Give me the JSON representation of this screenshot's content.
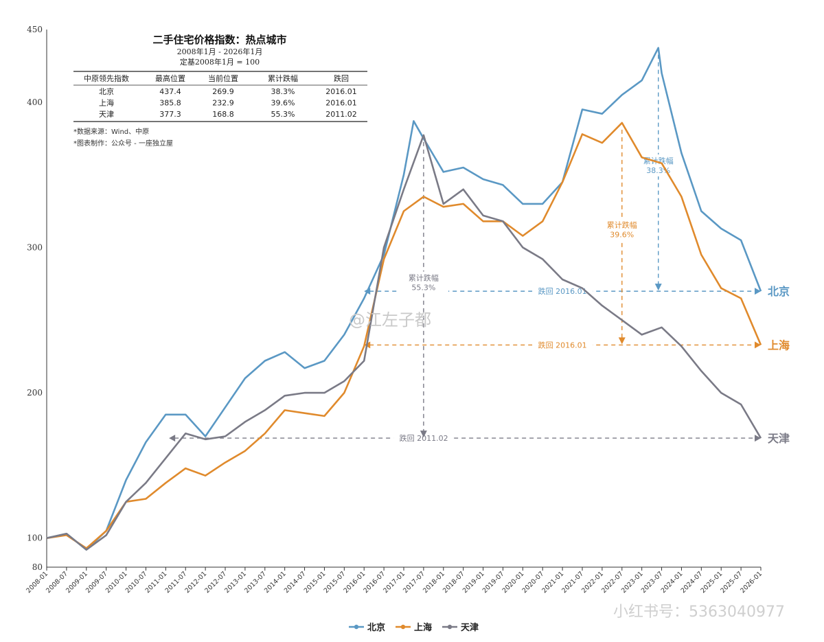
{
  "chart_data": {
    "type": "line",
    "title": "二手住宅价格指数：热点城市",
    "subtitle_range": "2008年1月 - 2026年1月",
    "subtitle_base": "定基2008年1月 = 100",
    "ylim": [
      80,
      450
    ],
    "yticks": [
      80,
      100,
      200,
      300,
      400,
      450
    ],
    "grid": false,
    "legend_position": "bottom",
    "x_ticks": [
      "2008-01",
      "2008-07",
      "2009-01",
      "2009-07",
      "2010-01",
      "2010-07",
      "2011-01",
      "2011-07",
      "2012-01",
      "2012-07",
      "2013-01",
      "2013-07",
      "2014-01",
      "2014-07",
      "2015-01",
      "2015-07",
      "2016-01",
      "2016-07",
      "2017-01",
      "2017-07",
      "2018-01",
      "2018-07",
      "2019-01",
      "2019-07",
      "2020-01",
      "2020-07",
      "2021-01",
      "2021-07",
      "2022-01",
      "2022-07",
      "2023-01",
      "2023-07",
      "2024-01",
      "2024-07",
      "2025-01",
      "2025-07",
      "2026-01"
    ],
    "series": [
      {
        "name": "北京",
        "end_label": "北京",
        "color": "#5a98c4",
        "points": [
          [
            "2008-01",
            100
          ],
          [
            "2008-07",
            103
          ],
          [
            "2009-01",
            92
          ],
          [
            "2009-07",
            105
          ],
          [
            "2010-01",
            140
          ],
          [
            "2010-07",
            166
          ],
          [
            "2011-01",
            185
          ],
          [
            "2011-07",
            185
          ],
          [
            "2012-01",
            170
          ],
          [
            "2012-07",
            190
          ],
          [
            "2013-01",
            210
          ],
          [
            "2013-07",
            222
          ],
          [
            "2014-01",
            228
          ],
          [
            "2014-07",
            217
          ],
          [
            "2015-01",
            222
          ],
          [
            "2015-07",
            240
          ],
          [
            "2016-01",
            265
          ],
          [
            "2016-07",
            295
          ],
          [
            "2017-01",
            350
          ],
          [
            "2017-04",
            387
          ],
          [
            "2017-07",
            375
          ],
          [
            "2018-01",
            352
          ],
          [
            "2018-07",
            355
          ],
          [
            "2019-01",
            347
          ],
          [
            "2019-07",
            343
          ],
          [
            "2020-01",
            330
          ],
          [
            "2020-07",
            330
          ],
          [
            "2021-01",
            345
          ],
          [
            "2021-07",
            395
          ],
          [
            "2022-01",
            392
          ],
          [
            "2022-07",
            405
          ],
          [
            "2023-01",
            415
          ],
          [
            "2023-06",
            437.4
          ],
          [
            "2023-07",
            420
          ],
          [
            "2024-01",
            365
          ],
          [
            "2024-07",
            325
          ],
          [
            "2025-01",
            313
          ],
          [
            "2025-07",
            305
          ],
          [
            "2026-01",
            269.9
          ]
        ]
      },
      {
        "name": "上海",
        "end_label": "上海",
        "color": "#e08a2c",
        "points": [
          [
            "2008-01",
            100
          ],
          [
            "2008-07",
            102
          ],
          [
            "2009-01",
            93
          ],
          [
            "2009-07",
            105
          ],
          [
            "2010-01",
            125
          ],
          [
            "2010-07",
            127
          ],
          [
            "2011-01",
            138
          ],
          [
            "2011-07",
            148
          ],
          [
            "2012-01",
            143
          ],
          [
            "2012-07",
            152
          ],
          [
            "2013-01",
            160
          ],
          [
            "2013-07",
            172
          ],
          [
            "2014-01",
            188
          ],
          [
            "2014-07",
            186
          ],
          [
            "2015-01",
            184
          ],
          [
            "2015-07",
            200
          ],
          [
            "2016-01",
            232
          ],
          [
            "2016-07",
            292
          ],
          [
            "2017-01",
            325
          ],
          [
            "2017-07",
            335
          ],
          [
            "2018-01",
            328
          ],
          [
            "2018-07",
            330
          ],
          [
            "2019-01",
            318
          ],
          [
            "2019-07",
            318
          ],
          [
            "2020-01",
            308
          ],
          [
            "2020-07",
            318
          ],
          [
            "2021-01",
            345
          ],
          [
            "2021-07",
            378
          ],
          [
            "2022-01",
            372
          ],
          [
            "2022-07",
            385.8
          ],
          [
            "2023-01",
            362
          ],
          [
            "2023-07",
            358
          ],
          [
            "2024-01",
            335
          ],
          [
            "2024-07",
            295
          ],
          [
            "2025-01",
            272
          ],
          [
            "2025-07",
            265
          ],
          [
            "2026-01",
            232.9
          ]
        ]
      },
      {
        "name": "天津",
        "end_label": "天津",
        "color": "#7a7a86",
        "points": [
          [
            "2008-01",
            100
          ],
          [
            "2008-07",
            103
          ],
          [
            "2009-01",
            92
          ],
          [
            "2009-07",
            102
          ],
          [
            "2010-01",
            125
          ],
          [
            "2010-07",
            138
          ],
          [
            "2011-01",
            155
          ],
          [
            "2011-07",
            172
          ],
          [
            "2012-01",
            168
          ],
          [
            "2012-07",
            170
          ],
          [
            "2013-01",
            180
          ],
          [
            "2013-07",
            188
          ],
          [
            "2014-01",
            198
          ],
          [
            "2014-07",
            200
          ],
          [
            "2015-01",
            200
          ],
          [
            "2015-07",
            208
          ],
          [
            "2016-01",
            222
          ],
          [
            "2016-07",
            300
          ],
          [
            "2017-01",
            340
          ],
          [
            "2017-07",
            377.3
          ],
          [
            "2018-01",
            330
          ],
          [
            "2018-07",
            340
          ],
          [
            "2019-01",
            322
          ],
          [
            "2019-07",
            318
          ],
          [
            "2020-01",
            300
          ],
          [
            "2020-07",
            292
          ],
          [
            "2021-01",
            278
          ],
          [
            "2021-07",
            272
          ],
          [
            "2022-01",
            260
          ],
          [
            "2022-07",
            250
          ],
          [
            "2023-01",
            240
          ],
          [
            "2023-07",
            245
          ],
          [
            "2024-01",
            232
          ],
          [
            "2024-07",
            215
          ],
          [
            "2025-01",
            200
          ],
          [
            "2025-07",
            192
          ],
          [
            "2026-01",
            168.8
          ]
        ]
      }
    ],
    "table": {
      "headers": [
        "中原领先指数",
        "最高位置",
        "当前位置",
        "累计跌幅",
        "跌回"
      ],
      "rows": [
        [
          "北京",
          "437.4",
          "269.9",
          "38.3%",
          "2016.01"
        ],
        [
          "上海",
          "385.8",
          "232.9",
          "39.6%",
          "2016.01"
        ],
        [
          "天津",
          "377.3",
          "168.8",
          "55.3%",
          "2011.02"
        ]
      ]
    },
    "notes": [
      "*数据来源：Wind、中原",
      "*图表制作：公众号 - 一座独立屋"
    ],
    "annotations": [
      {
        "series": "北京",
        "drop_label": "累计跌幅",
        "drop_value": "38.3%",
        "from": "2023-06",
        "back_to": "2016-01",
        "back_label": "跌回 2016.01",
        "level": 269.9
      },
      {
        "series": "上海",
        "drop_label": "累计跌幅",
        "drop_value": "39.6%",
        "from": "2022-07",
        "back_to": "2016-01",
        "back_label": "跌回 2016.01",
        "level": 232.9
      },
      {
        "series": "天津",
        "drop_label": "累计跌幅",
        "drop_value": "55.3%",
        "from": "2017-07",
        "back_to": "2011-02",
        "back_label": "跌回 2011.02",
        "level": 168.8
      }
    ]
  },
  "watermarks": {
    "center": "@江左子都",
    "bottom_right": "小红书号：5363040977"
  }
}
